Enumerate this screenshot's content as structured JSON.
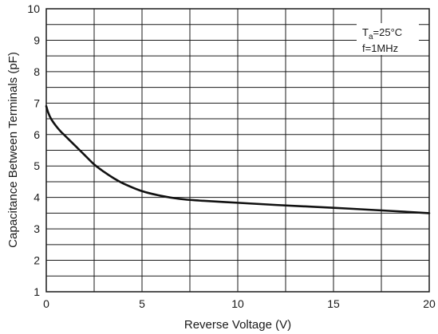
{
  "chart_data": {
    "type": "line",
    "xlabel": "Reverse Voltage (V)",
    "ylabel": "Capacitance Between Terminals (pF)",
    "xlim": [
      0,
      20
    ],
    "ylim": [
      1,
      10
    ],
    "x_ticks": [
      "0",
      "5",
      "10",
      "15",
      "20"
    ],
    "y_ticks": [
      "1",
      "2",
      "3",
      "4",
      "5",
      "6",
      "7",
      "8",
      "9",
      "10"
    ],
    "x_grid_step": 2.5,
    "y_grid_step": 0.5,
    "grid": true,
    "legend": null,
    "conditions": {
      "ta_label": "T",
      "ta_sub": "a",
      "ta_value": "=25°C",
      "freq": "f=1MHz",
      "placement": "top-right"
    },
    "series": [
      {
        "x": [
          0,
          0.1,
          0.25,
          0.5,
          0.75,
          1,
          1.5,
          2,
          2.5,
          3,
          3.5,
          4,
          5,
          6,
          7,
          8,
          10,
          12,
          15,
          18,
          20
        ],
        "values": [
          6.9,
          6.7,
          6.5,
          6.28,
          6.1,
          5.95,
          5.65,
          5.35,
          5.05,
          4.82,
          4.62,
          4.45,
          4.2,
          4.05,
          3.95,
          3.9,
          3.83,
          3.76,
          3.67,
          3.57,
          3.5
        ]
      }
    ]
  }
}
